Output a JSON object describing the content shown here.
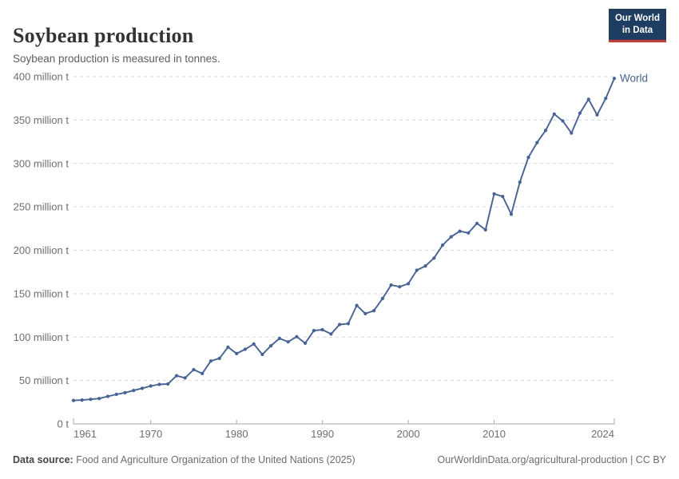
{
  "header": {
    "title": "Soybean production",
    "subtitle": "Soybean production is measured in tonnes.",
    "logo_line1": "Our World",
    "logo_line2": "in Data"
  },
  "chart_data": {
    "type": "line",
    "title": "Soybean production",
    "unit": "tonnes",
    "grid": "horizontal dashed gridlines",
    "legend_position": "end-of-line label",
    "xlim": [
      1961,
      2024
    ],
    "ylim": [
      0,
      400000000
    ],
    "x_tick_labels": [
      "1961",
      "1970",
      "1980",
      "1990",
      "2000",
      "2010",
      "2024"
    ],
    "x_ticks": [
      1961,
      1970,
      1980,
      1990,
      2000,
      2010,
      2024
    ],
    "y_ticks_million_t": [
      0,
      50,
      100,
      150,
      200,
      250,
      300,
      350,
      400
    ],
    "y_tick_labels": [
      "0 t",
      "50 million t",
      "100 million t",
      "150 million t",
      "200 million t",
      "250 million t",
      "300 million t",
      "350 million t",
      "400 million t"
    ],
    "series": [
      {
        "name": "World",
        "color": "#4262a0",
        "years": [
          1961,
          1962,
          1963,
          1964,
          1965,
          1966,
          1967,
          1968,
          1969,
          1970,
          1971,
          1972,
          1973,
          1974,
          1975,
          1976,
          1977,
          1978,
          1979,
          1980,
          1981,
          1982,
          1983,
          1984,
          1985,
          1986,
          1987,
          1988,
          1989,
          1990,
          1991,
          1992,
          1993,
          1994,
          1995,
          1996,
          1997,
          1998,
          1999,
          2000,
          2001,
          2002,
          2003,
          2004,
          2005,
          2006,
          2007,
          2008,
          2009,
          2010,
          2011,
          2012,
          2013,
          2014,
          2015,
          2016,
          2017,
          2018,
          2019,
          2020,
          2021,
          2022,
          2023,
          2024
        ],
        "values_million_t": [
          27,
          27.5,
          28.3,
          29.2,
          31.7,
          34,
          36,
          38.5,
          41,
          43.7,
          45.5,
          46,
          55.5,
          53,
          62.5,
          58,
          72.5,
          75.5,
          88.5,
          81,
          86,
          92,
          80,
          90,
          98.5,
          94.5,
          100.5,
          93,
          107.5,
          108.5,
          103.5,
          114.5,
          115.5,
          136.5,
          127,
          130.5,
          144.5,
          160,
          158,
          161.5,
          177,
          182,
          191,
          206,
          215.5,
          222,
          220,
          231,
          223.5,
          265,
          262,
          241.5,
          278.5,
          307,
          324,
          338,
          357,
          349,
          335,
          358,
          374,
          356,
          375,
          398
        ]
      }
    ]
  },
  "footer": {
    "source_label": "Data source:",
    "source_text": " Food and Agriculture Organization of the United Nations (2025)",
    "link_text": "OurWorldinData.org/agricultural-production | CC BY"
  },
  "colors": {
    "line": "#4262a0",
    "gridline": "#dadada",
    "axis": "#a8a8a8",
    "tick_label": "#6e6e6e",
    "title": "#333333",
    "subtitle": "#5f5f5f",
    "logo_bg": "#1d3d63",
    "logo_red": "#d8352a"
  }
}
